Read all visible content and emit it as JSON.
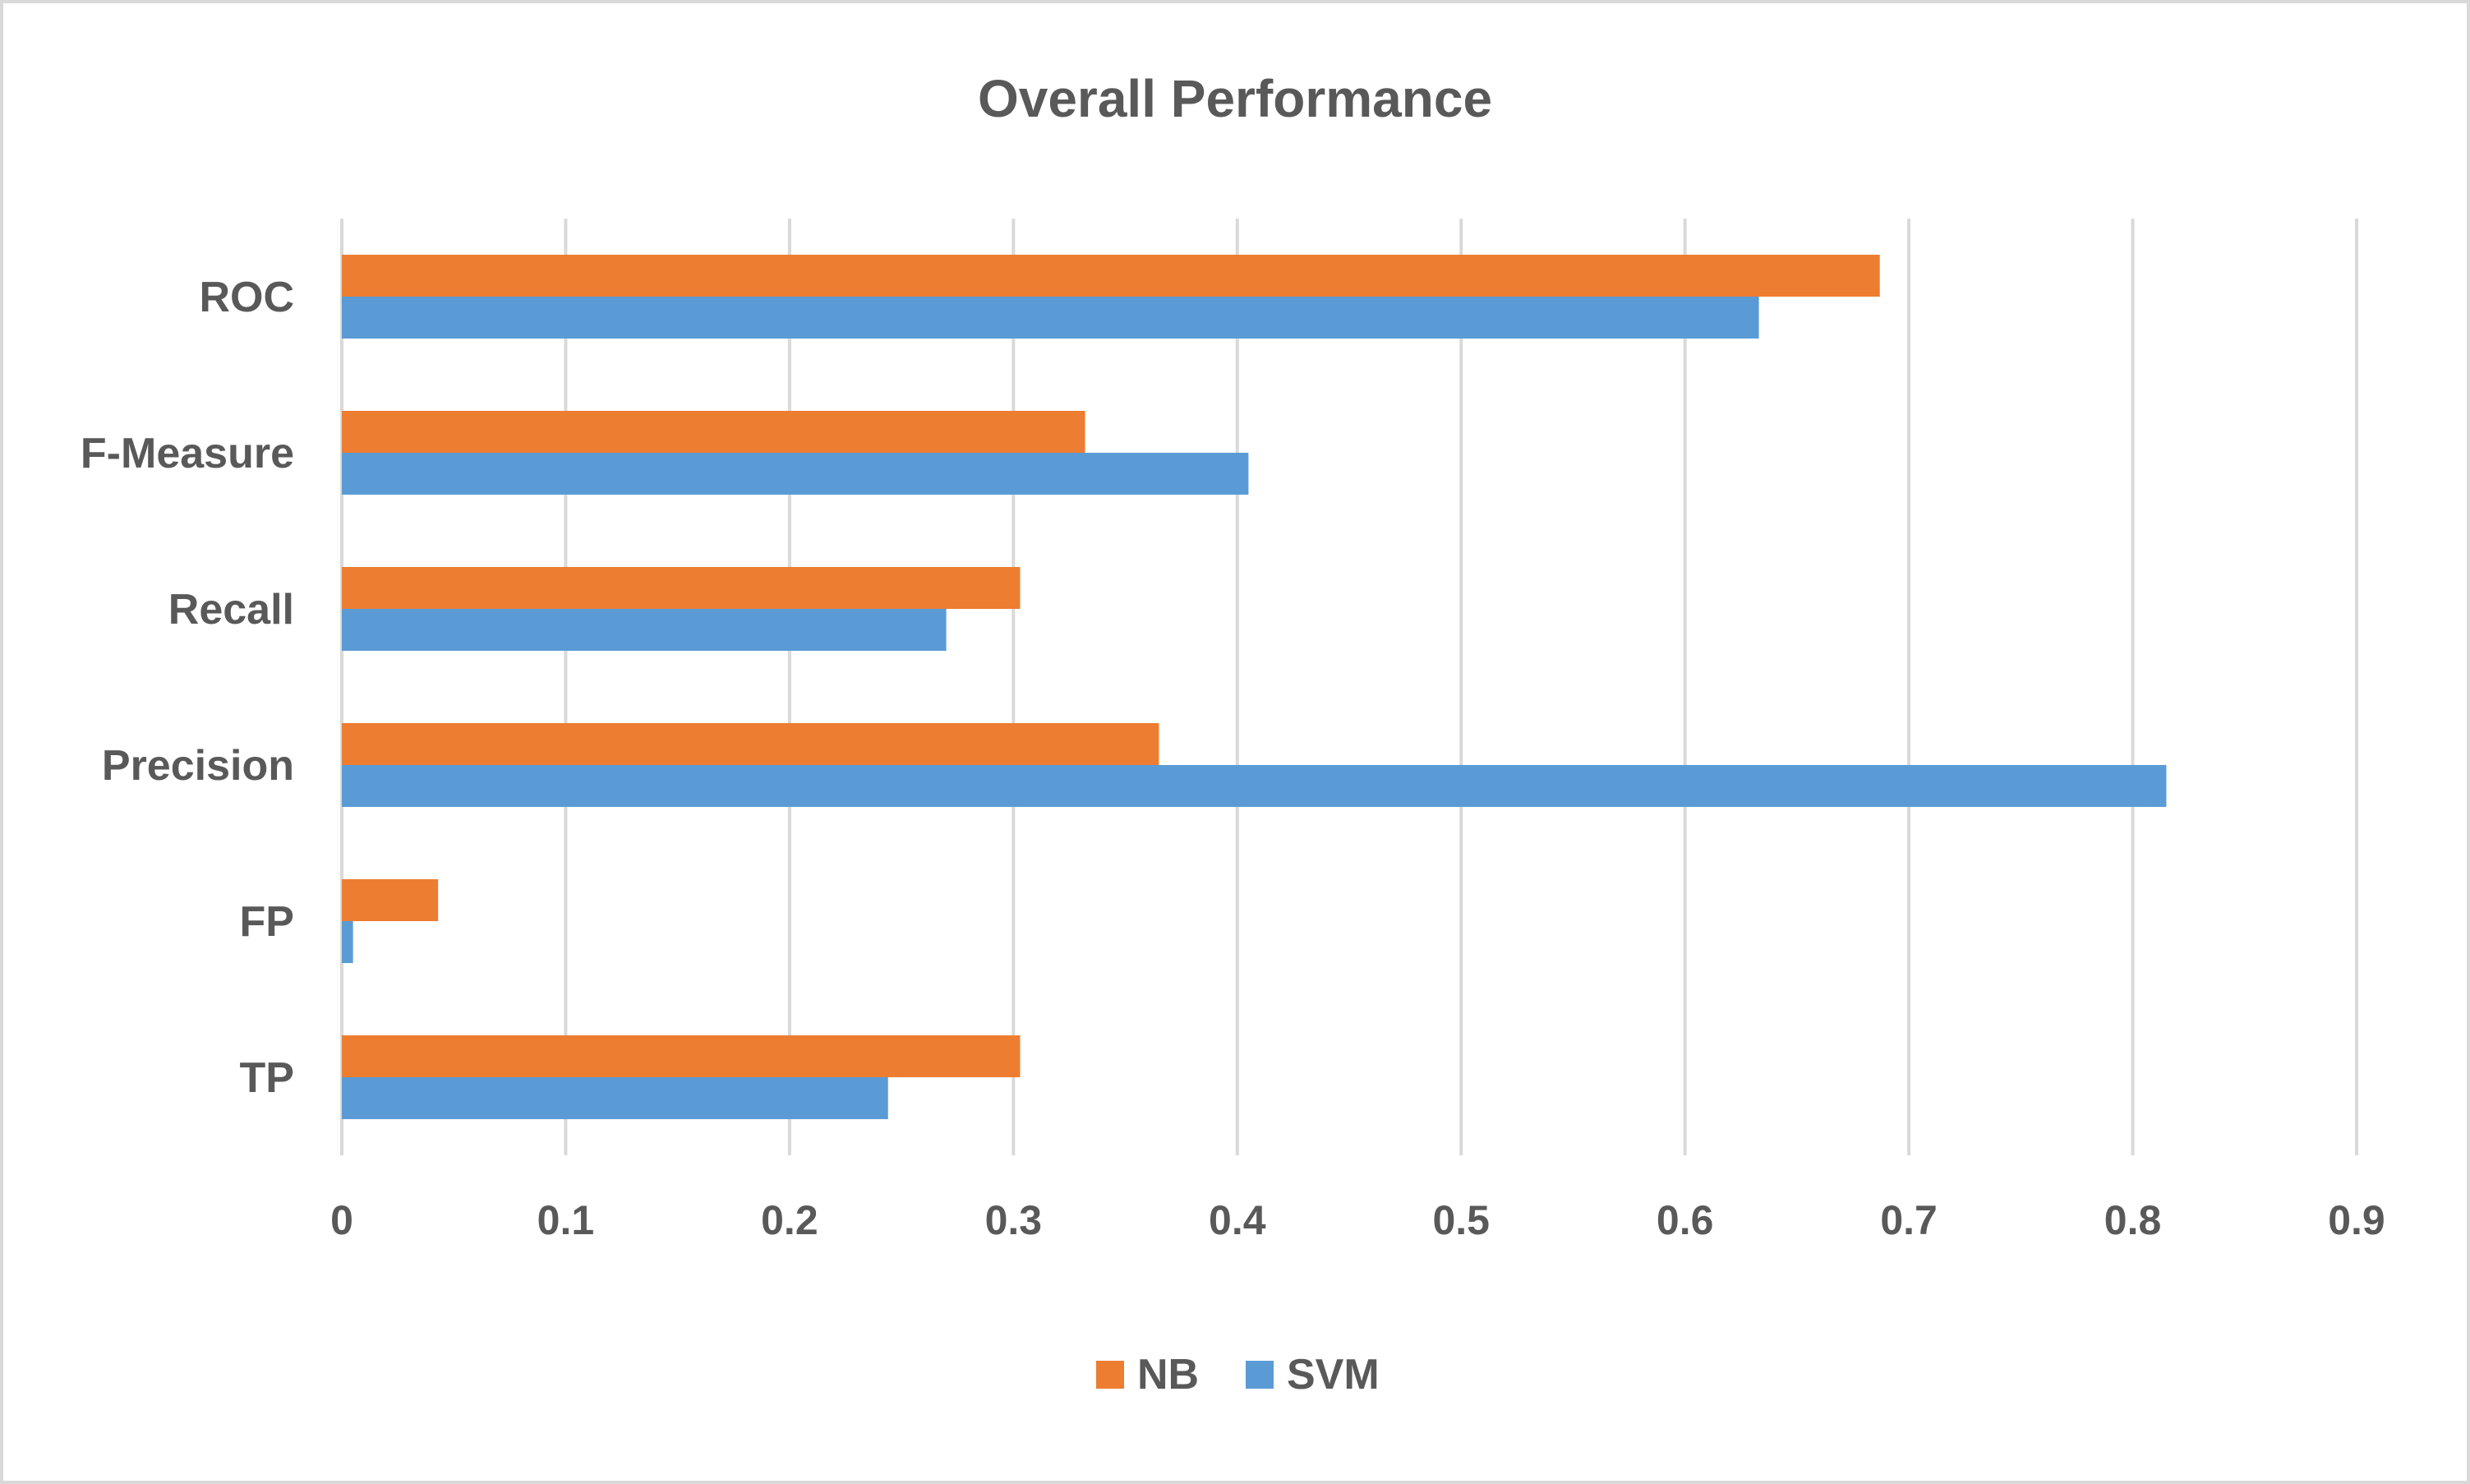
{
  "chart_data": {
    "type": "bar",
    "orientation": "horizontal",
    "title": "Overall Performance",
    "categories": [
      "TP",
      "FP",
      "Precision",
      "Recall",
      "F-Measure",
      "ROC"
    ],
    "series": [
      {
        "name": "NB",
        "color": "#ed7d31",
        "values": [
          0.303,
          0.043,
          0.365,
          0.303,
          0.332,
          0.687
        ]
      },
      {
        "name": "SVM",
        "color": "#5b9bd5",
        "values": [
          0.244,
          0.005,
          0.815,
          0.27,
          0.405,
          0.633
        ]
      }
    ],
    "xlim": [
      0,
      0.9
    ],
    "xticks": [
      "0",
      "0.1",
      "0.2",
      "0.3",
      "0.4",
      "0.5",
      "0.6",
      "0.7",
      "0.8",
      "0.9"
    ],
    "grid": true,
    "legend_position": "bottom"
  }
}
